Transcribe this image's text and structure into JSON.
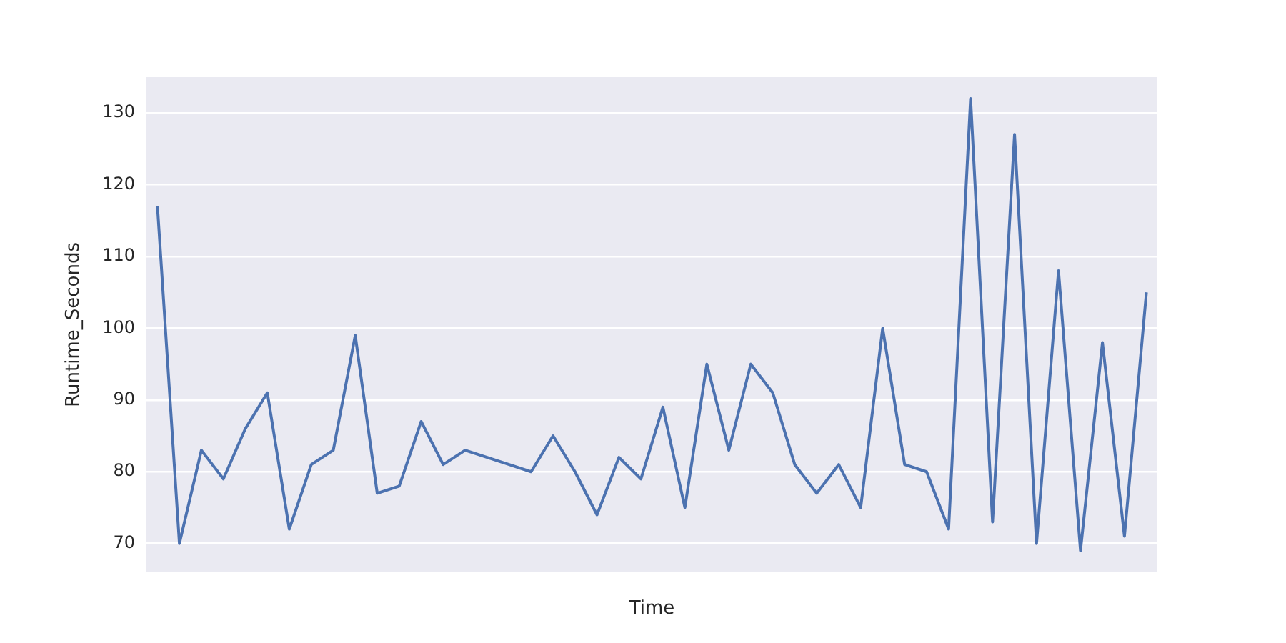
{
  "chart_data": {
    "type": "line",
    "xlabel": "Time",
    "ylabel": "Runtime_Seconds",
    "ylim": [
      66,
      135
    ],
    "yticks": [
      70,
      80,
      90,
      100,
      110,
      120,
      130
    ],
    "tick_labels": "y",
    "grid": "y",
    "categories": [
      null,
      null,
      null,
      null,
      null,
      null,
      null,
      null,
      null,
      null,
      null,
      null,
      null,
      null,
      null,
      null,
      null,
      null,
      null,
      null,
      null,
      null,
      null,
      null,
      null,
      null,
      null,
      null,
      null,
      null,
      null,
      null,
      null,
      null,
      null,
      null,
      null,
      null,
      null,
      null,
      null,
      null,
      null,
      null,
      null,
      null
    ],
    "series": [
      {
        "color": "#4c72b0",
        "values": [
          117,
          70,
          83,
          79,
          86,
          91,
          72,
          81,
          83,
          99,
          77,
          78,
          87,
          81,
          83,
          82,
          81,
          80,
          85,
          80,
          74,
          82,
          79,
          89,
          75,
          95,
          83,
          95,
          91,
          81,
          77,
          81,
          75,
          100,
          81,
          80,
          72,
          132,
          73,
          127,
          70,
          108,
          69,
          98,
          71,
          105
        ]
      }
    ]
  }
}
